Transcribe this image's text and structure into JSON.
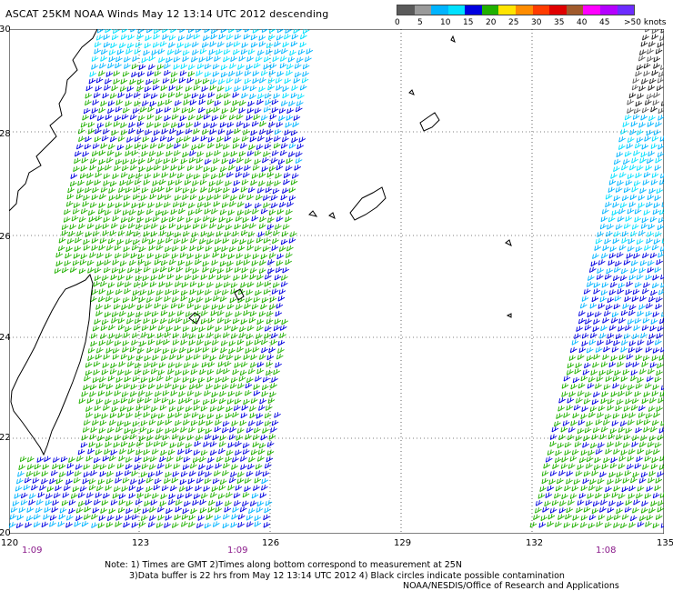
{
  "header": {
    "title": "ASCAT 25KM NOAA Winds  May 12 13:14 UTC 2012 descending"
  },
  "legend": {
    "colors": [
      "#5a5a5a",
      "#9a9a9a",
      "#00b4ff",
      "#00e1ff",
      "#0000e0",
      "#20b000",
      "#ffe400",
      "#ff8c00",
      "#ff3c00",
      "#e00000",
      "#a05a2c",
      "#ff00ff",
      "#b400ff",
      "#6c2cff"
    ],
    "labels": [
      "0",
      "5",
      "10",
      "15",
      "20",
      "25",
      "30",
      "35",
      "40",
      "45",
      ">50 knots"
    ]
  },
  "axes": {
    "lat_labels": [
      "30",
      "28",
      "26",
      "24",
      "22",
      "20"
    ],
    "lon_labels": [
      "120",
      "123",
      "126",
      "129",
      "132",
      "135"
    ]
  },
  "swath_times": [
    "1:09",
    "1:09",
    "1:08"
  ],
  "notes": {
    "line1": "Note: 1) Times are GMT 2)Times along bottom correspond to measurement at 25N",
    "line2": "3)Data buffer is 22 hrs from May 12 13:14 UTC 2012 4) Black circles indicate possible contamination",
    "line3": "NOAA/NESDIS/Office of Research and Applications"
  }
}
